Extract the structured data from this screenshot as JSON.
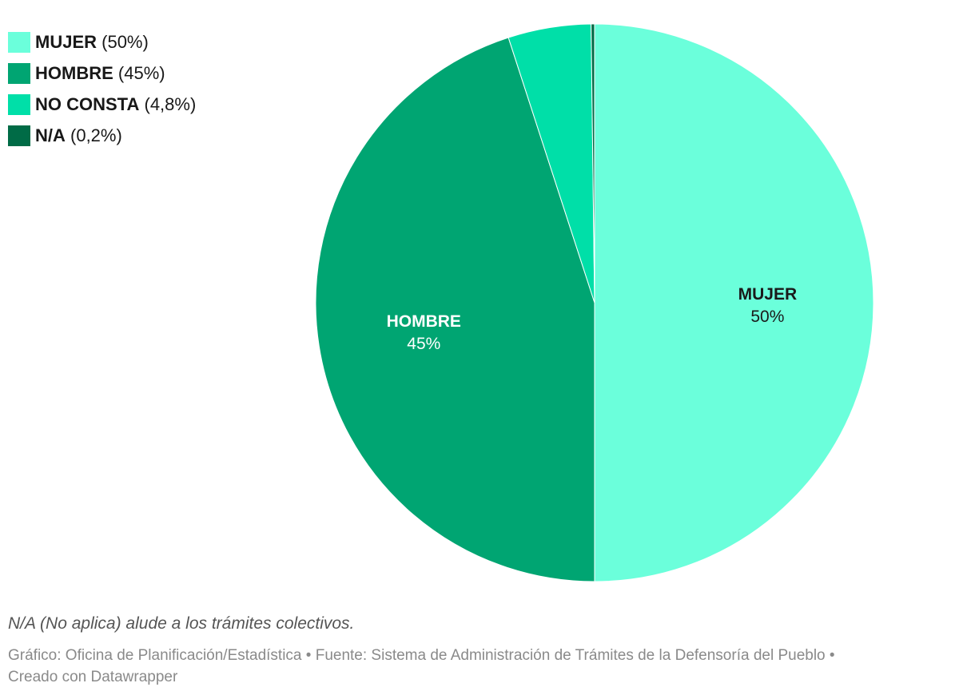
{
  "chart_data": {
    "type": "pie",
    "slices": [
      {
        "label": "MUJER",
        "value": 50,
        "display": "50%",
        "legend_value": "(50%)",
        "color": "#6bffdb",
        "label_color": "#1a1a1a"
      },
      {
        "label": "HOMBRE",
        "value": 45,
        "display": "45%",
        "legend_value": "(45%)",
        "color": "#00a572",
        "label_color": "#ffffff"
      },
      {
        "label": "NO CONSTA",
        "value": 4.8,
        "display": "4,8%",
        "legend_value": "(4,8%)",
        "color": "#00dfa8",
        "label_color": "#1a1a1a"
      },
      {
        "label": "N/A",
        "value": 0.2,
        "display": "0,2%",
        "legend_value": "(0,2%)",
        "color": "#006b46",
        "label_color": "#ffffff"
      }
    ],
    "legend_position": "top-left",
    "start_angle_deg": 0,
    "direction": "clockwise"
  },
  "note": "N/A (No aplica) alude a los trámites colectivos.",
  "footer": {
    "line1": "Gráfico: Oficina de Planificación/Estadística • Fuente: Sistema de Administración de Trámites de la Defensoría del Pueblo •",
    "line2": "Creado con Datawrapper"
  }
}
